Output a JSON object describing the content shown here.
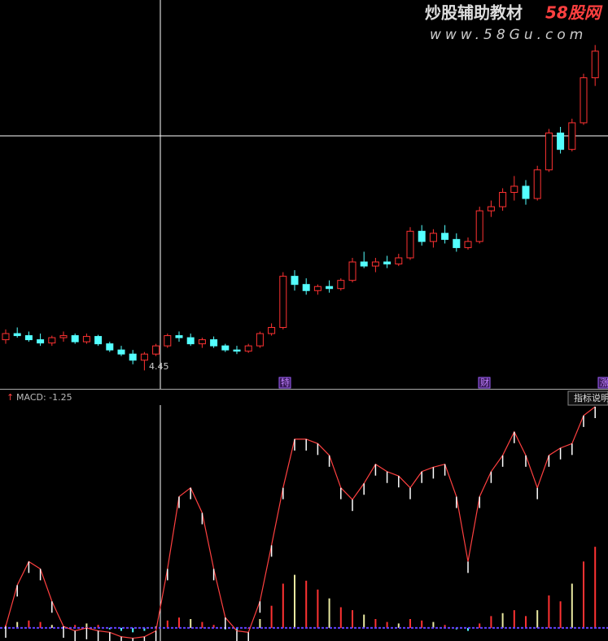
{
  "chart_data": {
    "type": "candlestick",
    "watermark": {
      "title": "炒股辅助教材",
      "brand": "58股网",
      "url": "www.58Gu.com"
    },
    "low_label": "4.45",
    "markers": [
      "特",
      "财",
      "涨"
    ],
    "up_color": "#ff3232",
    "down_color": "#54ffff",
    "ylim": [
      4.0,
      13.5
    ],
    "candles": [
      [
        5.2,
        5.45,
        5.1,
        5.35
      ],
      [
        5.35,
        5.5,
        5.25,
        5.3
      ],
      [
        5.3,
        5.4,
        5.15,
        5.2
      ],
      [
        5.2,
        5.35,
        5.05,
        5.12
      ],
      [
        5.12,
        5.3,
        5.05,
        5.25
      ],
      [
        5.25,
        5.4,
        5.15,
        5.3
      ],
      [
        5.3,
        5.35,
        5.1,
        5.15
      ],
      [
        5.15,
        5.35,
        5.1,
        5.28
      ],
      [
        5.28,
        5.32,
        5.05,
        5.1
      ],
      [
        5.1,
        5.15,
        4.9,
        4.95
      ],
      [
        4.95,
        5.05,
        4.8,
        4.85
      ],
      [
        4.85,
        4.95,
        4.6,
        4.7
      ],
      [
        4.7,
        4.9,
        4.45,
        4.85
      ],
      [
        4.85,
        5.1,
        4.8,
        5.05
      ],
      [
        5.05,
        5.35,
        5.0,
        5.3
      ],
      [
        5.3,
        5.4,
        5.15,
        5.25
      ],
      [
        5.25,
        5.35,
        5.05,
        5.1
      ],
      [
        5.1,
        5.25,
        5.0,
        5.2
      ],
      [
        5.2,
        5.28,
        5.0,
        5.05
      ],
      [
        5.05,
        5.1,
        4.9,
        4.95
      ],
      [
        4.95,
        5.05,
        4.85,
        4.92
      ],
      [
        4.92,
        5.1,
        4.88,
        5.05
      ],
      [
        5.05,
        5.4,
        5.0,
        5.35
      ],
      [
        5.35,
        5.6,
        5.3,
        5.5
      ],
      [
        5.5,
        6.85,
        5.45,
        6.75
      ],
      [
        6.75,
        6.9,
        6.4,
        6.55
      ],
      [
        6.55,
        6.7,
        6.3,
        6.4
      ],
      [
        6.4,
        6.55,
        6.3,
        6.5
      ],
      [
        6.5,
        6.65,
        6.35,
        6.45
      ],
      [
        6.45,
        6.7,
        6.4,
        6.65
      ],
      [
        6.65,
        7.2,
        6.6,
        7.1
      ],
      [
        7.1,
        7.35,
        6.95,
        7.0
      ],
      [
        7.0,
        7.2,
        6.85,
        7.1
      ],
      [
        7.1,
        7.25,
        6.95,
        7.05
      ],
      [
        7.05,
        7.3,
        7.0,
        7.2
      ],
      [
        7.2,
        7.95,
        7.15,
        7.85
      ],
      [
        7.85,
        8.0,
        7.5,
        7.6
      ],
      [
        7.6,
        7.9,
        7.45,
        7.8
      ],
      [
        7.8,
        8.0,
        7.55,
        7.65
      ],
      [
        7.65,
        7.8,
        7.35,
        7.45
      ],
      [
        7.45,
        7.7,
        7.4,
        7.6
      ],
      [
        7.6,
        8.45,
        7.55,
        8.35
      ],
      [
        8.35,
        8.6,
        8.2,
        8.45
      ],
      [
        8.45,
        8.9,
        8.35,
        8.8
      ],
      [
        8.8,
        9.2,
        8.6,
        8.95
      ],
      [
        8.95,
        9.1,
        8.5,
        8.65
      ],
      [
        8.65,
        9.45,
        8.6,
        9.35
      ],
      [
        9.35,
        10.35,
        9.3,
        10.25
      ],
      [
        10.25,
        10.4,
        9.75,
        9.85
      ],
      [
        9.85,
        10.6,
        9.8,
        10.5
      ],
      [
        10.5,
        11.7,
        10.45,
        11.6
      ],
      [
        11.6,
        12.4,
        11.4,
        12.25
      ]
    ],
    "macd": {
      "title": "MACD: -1.25",
      "button": "指标说明",
      "ylim": [
        -0.1,
        1.5
      ],
      "hist": [
        0.02,
        0.04,
        0.05,
        0.04,
        0.02,
        0.01,
        0.02,
        0.03,
        0.02,
        -0.01,
        -0.02,
        -0.03,
        -0.02,
        0.01,
        0.05,
        0.07,
        0.06,
        0.04,
        0.02,
        -0.01,
        -0.02,
        0.0,
        0.06,
        0.15,
        0.3,
        0.36,
        0.32,
        0.26,
        0.2,
        0.14,
        0.12,
        0.09,
        0.06,
        0.04,
        0.03,
        0.06,
        0.05,
        0.04,
        0.02,
        -0.01,
        -0.02,
        0.03,
        0.08,
        0.1,
        0.12,
        0.08,
        0.12,
        0.22,
        0.18,
        0.3,
        0.45,
        0.55
      ],
      "dif": [
        0.01,
        0.29,
        0.45,
        0.4,
        0.18,
        0.01,
        -0.02,
        0.0,
        -0.02,
        -0.03,
        -0.06,
        -0.07,
        -0.06,
        -0.02,
        0.4,
        0.89,
        0.95,
        0.78,
        0.4,
        0.07,
        -0.02,
        -0.03,
        0.18,
        0.56,
        0.95,
        1.28,
        1.28,
        1.25,
        1.17,
        0.95,
        0.87,
        0.98,
        1.11,
        1.06,
        1.03,
        0.95,
        1.06,
        1.09,
        1.11,
        0.89,
        0.45,
        0.89,
        1.06,
        1.17,
        1.33,
        1.17,
        0.95,
        1.17,
        1.22,
        1.25,
        1.44,
        1.5
      ]
    }
  }
}
